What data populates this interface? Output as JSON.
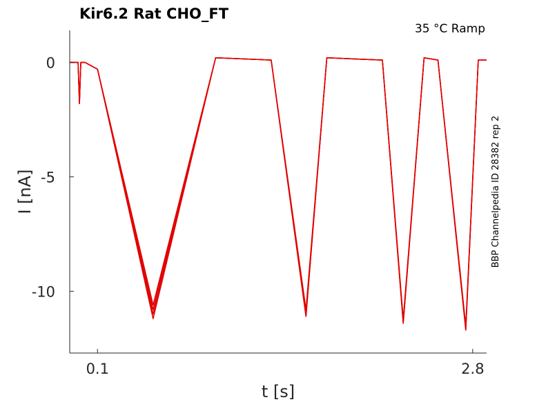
{
  "chart_data": {
    "type": "line",
    "title": "Kir6.2  Rat  CHO_FT",
    "subtitle": "35 °C  Ramp",
    "side_note": "BBP Channelpedia ID 28382 rep 2",
    "xlabel": "t [s]",
    "ylabel": "I [nA]",
    "xlim": [
      -0.1,
      2.9
    ],
    "ylim": [
      -12.7,
      1.4
    ],
    "xticks": [
      0.1,
      2.8
    ],
    "xtick_labels": [
      "0.1",
      "2.8"
    ],
    "yticks": [
      0,
      -5,
      -10
    ],
    "ytick_labels": [
      "0",
      "-5",
      "-10"
    ],
    "grid": false,
    "line_color": "#e00000",
    "series": [
      {
        "x": [
          -0.1,
          -0.04,
          -0.03,
          -0.02,
          -0.01,
          0.0,
          0.01,
          0.1,
          0.5,
          0.95,
          1.35,
          1.6,
          1.75,
          2.15,
          2.3,
          2.45,
          2.55,
          2.75,
          2.84,
          2.9
        ],
        "y": [
          0.0,
          0.0,
          -1.8,
          0.0,
          0.0,
          0.0,
          0.0,
          -0.3,
          -10.6,
          0.2,
          0.1,
          -10.8,
          0.2,
          0.1,
          -11.2,
          0.2,
          0.1,
          -11.5,
          0.1,
          0.1
        ]
      },
      {
        "x": [
          -0.1,
          -0.04,
          -0.03,
          -0.02,
          -0.01,
          0.0,
          0.01,
          0.1,
          0.5,
          0.95,
          1.35,
          1.6,
          1.75,
          2.15,
          2.3,
          2.45,
          2.55,
          2.75,
          2.84,
          2.9
        ],
        "y": [
          0.0,
          0.0,
          -1.8,
          0.0,
          0.0,
          0.0,
          0.0,
          -0.3,
          -10.8,
          0.2,
          0.1,
          -11.0,
          0.2,
          0.1,
          -11.3,
          0.2,
          0.1,
          -11.6,
          0.1,
          0.1
        ]
      },
      {
        "x": [
          -0.1,
          -0.04,
          -0.03,
          -0.02,
          -0.01,
          0.0,
          0.01,
          0.1,
          0.5,
          0.95,
          1.35,
          1.6,
          1.75,
          2.15,
          2.3,
          2.45,
          2.55,
          2.75,
          2.84,
          2.9
        ],
        "y": [
          0.0,
          0.0,
          -1.8,
          0.0,
          0.0,
          0.0,
          0.0,
          -0.3,
          -11.0,
          0.2,
          0.1,
          -11.1,
          0.2,
          0.1,
          -11.4,
          0.2,
          0.1,
          -11.7,
          0.1,
          0.1
        ]
      },
      {
        "x": [
          -0.1,
          -0.04,
          -0.03,
          -0.02,
          -0.01,
          0.0,
          0.01,
          0.1,
          0.5,
          0.95,
          1.35,
          1.6,
          1.75,
          2.15,
          2.3,
          2.45,
          2.55,
          2.75,
          2.84,
          2.9
        ],
        "y": [
          0.0,
          0.0,
          -1.8,
          0.0,
          0.0,
          0.0,
          0.0,
          -0.3,
          -11.2,
          0.2,
          0.1,
          -11.1,
          0.2,
          0.1,
          -11.4,
          0.2,
          0.1,
          -11.7,
          0.1,
          0.1
        ]
      }
    ]
  }
}
